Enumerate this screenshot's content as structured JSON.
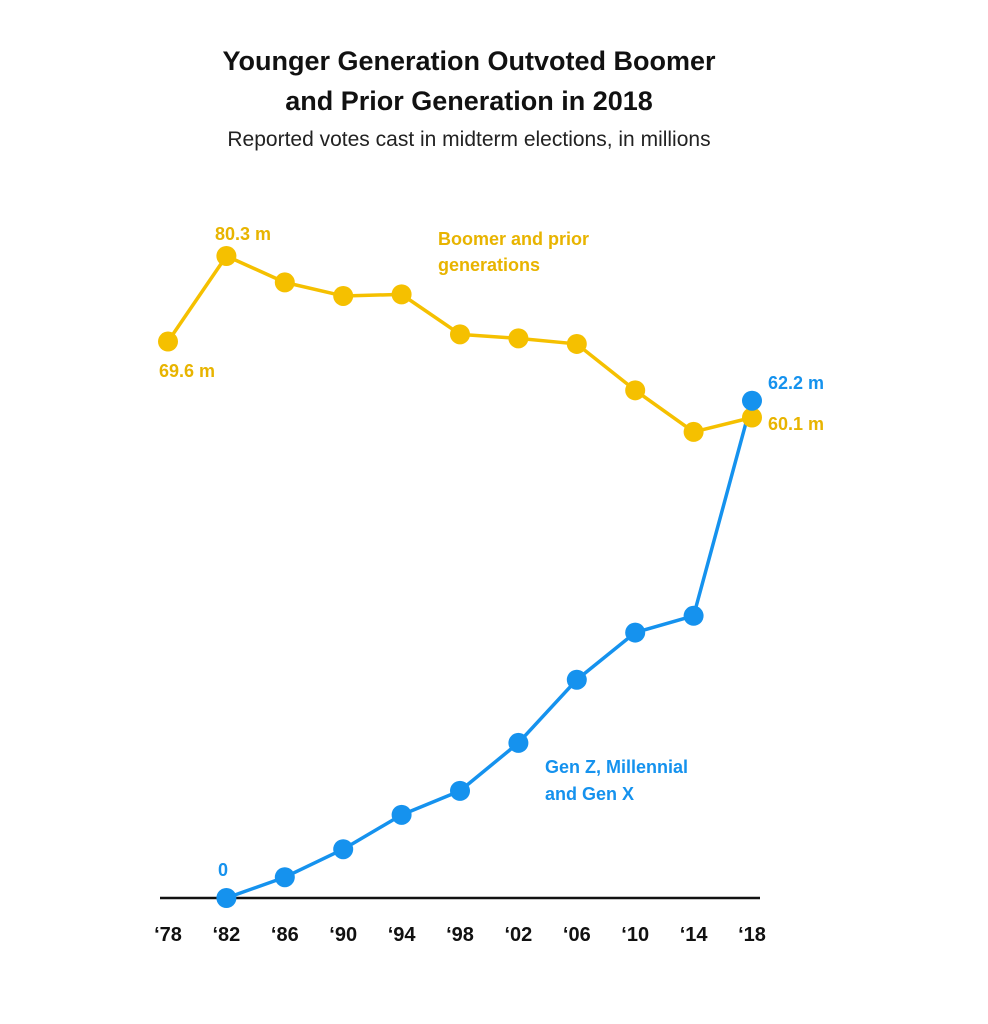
{
  "title_line1": "Younger Generation Outvoted Boomer",
  "title_line2": "and Prior Generation in 2018",
  "subtitle": "Reported votes cast in midterm elections, in millions",
  "colors": {
    "boomer": "#F5C000",
    "genz": "#1592EE",
    "axis": "#111111"
  },
  "chart_data": {
    "type": "line",
    "title": "Younger Generation Outvoted Boomer and Prior Generation in 2018",
    "subtitle": "Reported votes cast in midterm elections, in millions",
    "categories": [
      "‘78",
      "‘82",
      "‘86",
      "‘90",
      "‘94",
      "‘98",
      "‘02",
      "‘06",
      "‘10",
      "‘14",
      "‘18"
    ],
    "years": [
      1978,
      1982,
      1986,
      1990,
      1994,
      1998,
      2002,
      2006,
      2010,
      2014,
      2018
    ],
    "ylim": [
      0,
      80.3
    ],
    "series": [
      {
        "name": "Boomer and prior generations",
        "label_line1": "Boomer and prior",
        "label_line2": "generations",
        "values": [
          69.6,
          80.3,
          77.0,
          75.3,
          75.5,
          70.5,
          70.0,
          69.3,
          63.5,
          58.3,
          60.1
        ]
      },
      {
        "name": "Gen Z, Millennial and Gen X",
        "label_line1": "Gen Z, Millennial",
        "label_line2": "and Gen X",
        "values": [
          null,
          0,
          2.6,
          6.1,
          10.4,
          13.4,
          19.4,
          27.3,
          33.2,
          35.3,
          62.2
        ]
      }
    ],
    "annotations": {
      "boomer_start": "69.6 m",
      "boomer_peak": "80.3 m",
      "boomer_end": "60.1 m",
      "genz_start": "0",
      "genz_end": "62.2 m"
    }
  }
}
